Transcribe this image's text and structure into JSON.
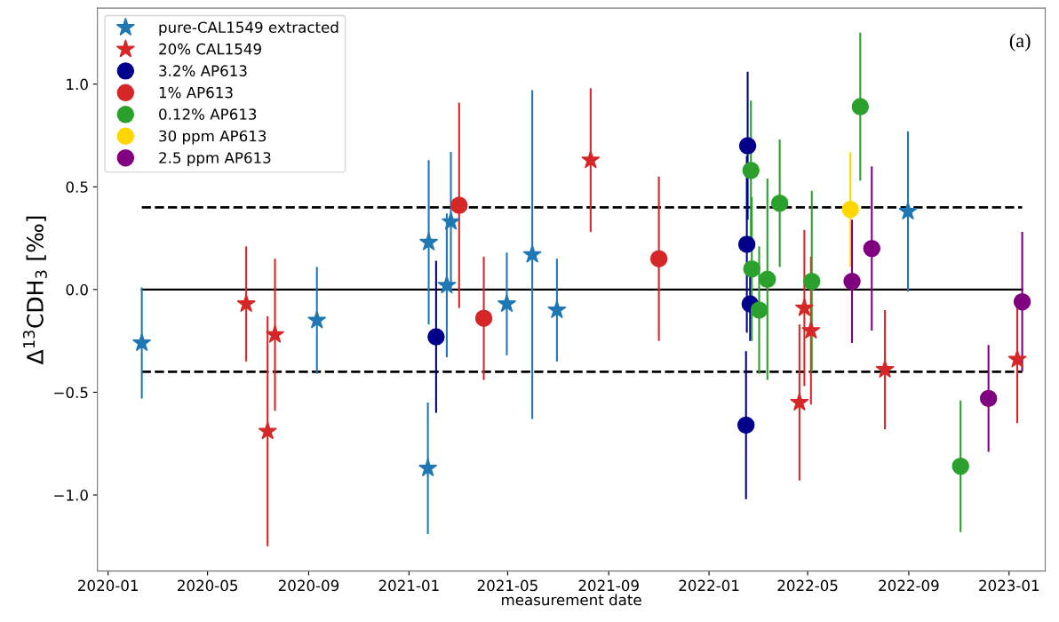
{
  "chart_data": {
    "type": "scatter",
    "xlabel": "measurement date",
    "ylabel": "Δ$^{13}$CDH$_{3}$ [‰]",
    "annotations": [
      "(a)"
    ],
    "xlim": [
      "2019-12-19",
      "2023-02-14"
    ],
    "ylim": [
      -1.37,
      1.37
    ],
    "xticks": [
      {
        "value": "2020-01-01",
        "label": "2020-01"
      },
      {
        "value": "2020-05-01",
        "label": "2020-05"
      },
      {
        "value": "2020-09-01",
        "label": "2020-09"
      },
      {
        "value": "2021-01-01",
        "label": "2021-01"
      },
      {
        "value": "2021-05-01",
        "label": "2021-05"
      },
      {
        "value": "2021-09-01",
        "label": "2021-09"
      },
      {
        "value": "2022-01-01",
        "label": "2022-01"
      },
      {
        "value": "2022-05-01",
        "label": "2022-05"
      },
      {
        "value": "2022-09-01",
        "label": "2022-09"
      },
      {
        "value": "2023-01-01",
        "label": "2023-01"
      }
    ],
    "yticks": [
      {
        "value": -1.0,
        "label": "−1.0"
      },
      {
        "value": -0.5,
        "label": "−0.5"
      },
      {
        "value": 0.0,
        "label": "0.0"
      },
      {
        "value": 0.5,
        "label": "0.5"
      },
      {
        "value": 1.0,
        "label": "1.0"
      }
    ],
    "grid": false,
    "legend": "top left",
    "ref_lines": [
      {
        "axis": "y",
        "value": 0,
        "color": "#000000",
        "line_style": "solid"
      },
      {
        "axis": "y",
        "value": 0.4,
        "color": "#000000",
        "line_style": "dashed"
      },
      {
        "axis": "y",
        "value": -0.4,
        "color": "#000000",
        "line_style": "dashed"
      }
    ],
    "series": [
      {
        "name": "pure-CAL1549 extracted",
        "color": "#1f77b4",
        "marker": "star",
        "x": [
          "2020-02-11",
          "2020-09-11",
          "2021-01-25",
          "2021-01-24",
          "2021-02-16",
          "2021-02-21",
          "2021-04-30",
          "2021-05-31",
          "2021-06-30",
          "2022-08-31"
        ],
        "values": [
          -0.26,
          -0.15,
          0.23,
          -0.87,
          0.02,
          0.33,
          -0.07,
          0.17,
          -0.1,
          0.38
        ],
        "errors": [
          0.27,
          0.26,
          0.4,
          0.32,
          0.35,
          0.34,
          0.25,
          0.8,
          0.25,
          0.39
        ]
      },
      {
        "name": "20% CAL1549",
        "color": "#d62728",
        "marker": "star",
        "x": [
          "2020-06-17",
          "2020-07-22",
          "2020-07-13",
          "2021-08-10",
          "2022-04-21",
          "2022-04-27",
          "2022-05-05",
          "2022-08-03",
          "2023-01-11"
        ],
        "values": [
          -0.07,
          -0.22,
          -0.69,
          0.63,
          -0.55,
          -0.09,
          -0.2,
          -0.39,
          -0.34
        ],
        "errors": [
          0.28,
          0.37,
          0.56,
          0.35,
          0.38,
          0.38,
          0.36,
          0.29,
          0.31
        ]
      },
      {
        "name": "3.2% AP613",
        "color": "#00008b",
        "marker": "circle",
        "x": [
          "2021-02-03",
          "2022-02-17",
          "2022-02-16",
          "2022-02-20",
          "2022-02-15"
        ],
        "values": [
          -0.23,
          0.7,
          0.22,
          -0.07,
          -0.66
        ],
        "errors": [
          0.37,
          0.36,
          0.43,
          0.18,
          0.36
        ]
      },
      {
        "name": "1% AP613",
        "color": "#d62728",
        "marker": "circle",
        "x": [
          "2021-03-03",
          "2021-04-02",
          "2021-11-01"
        ],
        "values": [
          0.41,
          -0.14,
          0.15
        ],
        "errors": [
          0.5,
          0.3,
          0.4
        ]
      },
      {
        "name": "0.12% AP613",
        "color": "#2ca02c",
        "marker": "circle",
        "x": [
          "2022-02-21",
          "2022-02-22",
          "2022-03-03",
          "2022-03-13",
          "2022-03-28",
          "2022-05-06",
          "2022-07-04",
          "2022-11-03"
        ],
        "values": [
          0.58,
          0.1,
          -0.1,
          0.05,
          0.42,
          0.04,
          0.89,
          -0.86
        ],
        "errors": [
          0.34,
          0.35,
          0.31,
          0.49,
          0.31,
          0.44,
          0.36,
          0.32
        ]
      },
      {
        "name": "30 ppm AP613",
        "color": "#ffd700",
        "marker": "circle",
        "x": [
          "2022-06-22"
        ],
        "values": [
          0.39
        ],
        "errors": [
          0.28
        ]
      },
      {
        "name": "2.5 ppm AP613",
        "color": "#800080",
        "marker": "circle",
        "x": [
          "2022-06-24",
          "2022-07-18",
          "2022-12-07",
          "2023-01-17"
        ],
        "values": [
          0.04,
          0.2,
          -0.53,
          -0.06
        ],
        "errors": [
          0.3,
          0.4,
          0.26,
          0.34
        ]
      }
    ]
  }
}
